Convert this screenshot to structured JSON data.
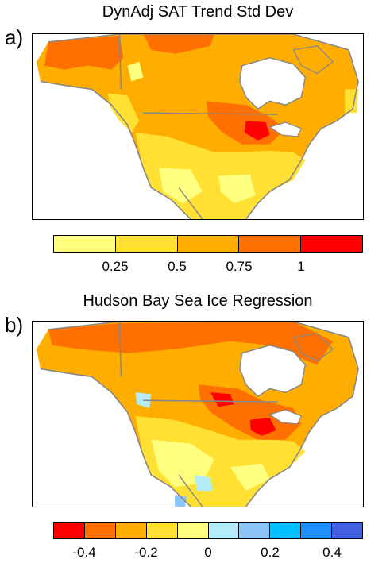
{
  "panels": [
    {
      "label": "a)",
      "title": "DynAdj SAT Trend Std Dev",
      "colorbar": {
        "colors": [
          "#ffff80",
          "#ffe033",
          "#ffae00",
          "#ff7000",
          "#ff0000"
        ],
        "ticks": [
          "0.25",
          "0.5",
          "0.75",
          "1"
        ],
        "tick_boundaries": [
          1,
          2,
          3,
          4
        ]
      }
    },
    {
      "label": "b)",
      "title": "Hudson Bay Sea Ice Regression",
      "colorbar": {
        "colors": [
          "#ff0000",
          "#ff7000",
          "#ffae00",
          "#ffe033",
          "#ffff80",
          "#b3ecf8",
          "#8cc6f8",
          "#00c0ff",
          "#1e90ff",
          "#4060e0"
        ],
        "ticks": [
          "-0.4",
          "-0.2",
          "0",
          "0.2",
          "0.4"
        ],
        "tick_boundaries": [
          1,
          3,
          5,
          7,
          9
        ]
      }
    }
  ],
  "chart_data": [
    {
      "type": "heatmap",
      "title": "DynAdj SAT Trend Std Dev",
      "levels": [
        0.25,
        0.5,
        0.75,
        1
      ],
      "region": "North America"
    },
    {
      "type": "heatmap",
      "title": "Hudson Bay Sea Ice Regression",
      "levels": [
        -0.4,
        -0.3,
        -0.2,
        -0.1,
        0,
        0.1,
        0.2,
        0.3,
        0.4
      ],
      "region": "North America"
    }
  ]
}
